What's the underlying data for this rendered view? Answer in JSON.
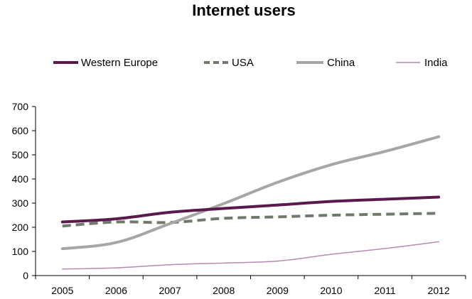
{
  "chart_data": {
    "type": "line",
    "title": "Internet users",
    "xlabel": "",
    "ylabel": "",
    "x": [
      "2005",
      "2006",
      "2007",
      "2008",
      "2009",
      "2010",
      "2011",
      "2012"
    ],
    "ylim": [
      0,
      700
    ],
    "yticks": [
      "0",
      "100",
      "200",
      "300",
      "400",
      "500",
      "600",
      "700"
    ],
    "grid": false,
    "legend_position": "top",
    "series": [
      {
        "name": "Western Europe",
        "values": [
          222,
          235,
          262,
          278,
          292,
          307,
          316,
          325
        ],
        "color": "#5b1a4e",
        "style": "solid",
        "width": "thick"
      },
      {
        "name": "USA",
        "values": [
          205,
          222,
          220,
          237,
          243,
          250,
          254,
          258
        ],
        "color": "#6f7a6c",
        "style": "dashed",
        "width": "thick"
      },
      {
        "name": "China",
        "values": [
          111,
          137,
          215,
          298,
          386,
          459,
          514,
          575
        ],
        "color": "#a6a6a6",
        "style": "solid",
        "width": "thick"
      },
      {
        "name": "India",
        "values": [
          27,
          32,
          45,
          52,
          60,
          88,
          112,
          140
        ],
        "color": "#b889b3",
        "style": "solid",
        "width": "thin"
      }
    ]
  }
}
